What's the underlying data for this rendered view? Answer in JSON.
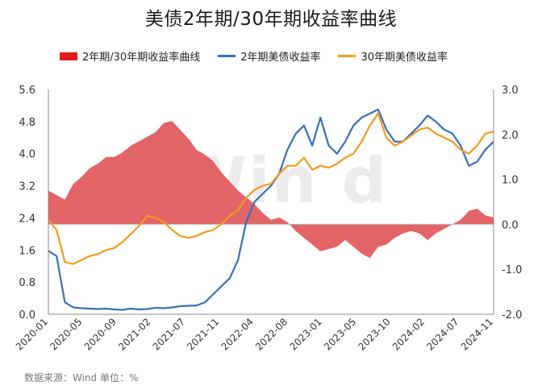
{
  "chart_data": {
    "type": "line",
    "title": "美债2年期/30年期收益率曲线",
    "source_note": "数据来源：Wind 单位：%",
    "watermark": "Wind",
    "y_left": {
      "min": 0.0,
      "max": 5.6,
      "ticks": [
        "5.6",
        "4.8",
        "4.0",
        "3.2",
        "2.4",
        "1.6",
        "0.8",
        "0.0"
      ]
    },
    "y_right": {
      "min": -2.0,
      "max": 3.0,
      "ticks": [
        "3.0",
        "2.0",
        "1.0",
        "0.0",
        "-1.0",
        "-2.0"
      ]
    },
    "x_ticks": [
      "2020-01",
      "2020-05",
      "2020-09",
      "2021-02",
      "2021-07",
      "2021-11",
      "2022-04",
      "2022-08",
      "2023-01",
      "2023-05",
      "2023-10",
      "2024-02",
      "2024-07",
      "2024-11"
    ],
    "series": [
      {
        "name": "2年期/30年期收益率曲线",
        "axis": "right",
        "kind": "area",
        "color": "#e15759",
        "points": [
          [
            0,
            0.75
          ],
          [
            1,
            0.65
          ],
          [
            2,
            0.55
          ],
          [
            3,
            0.9
          ],
          [
            4,
            1.05
          ],
          [
            5,
            1.25
          ],
          [
            6,
            1.35
          ],
          [
            7,
            1.5
          ],
          [
            8,
            1.5
          ],
          [
            9,
            1.6
          ],
          [
            10,
            1.75
          ],
          [
            11,
            1.85
          ],
          [
            12,
            1.95
          ],
          [
            13,
            2.05
          ],
          [
            14,
            2.25
          ],
          [
            15,
            2.3
          ],
          [
            16,
            2.1
          ],
          [
            17,
            1.9
          ],
          [
            18,
            1.65
          ],
          [
            19,
            1.55
          ],
          [
            20,
            1.4
          ],
          [
            21,
            1.15
          ],
          [
            22,
            0.95
          ],
          [
            23,
            0.75
          ],
          [
            24,
            0.6
          ],
          [
            25,
            0.45
          ],
          [
            26,
            0.25
          ],
          [
            27,
            0.1
          ],
          [
            28,
            0.15
          ],
          [
            29,
            0.05
          ],
          [
            30,
            -0.15
          ],
          [
            31,
            -0.3
          ],
          [
            32,
            -0.45
          ],
          [
            33,
            -0.6
          ],
          [
            34,
            -0.55
          ],
          [
            35,
            -0.5
          ],
          [
            36,
            -0.35
          ],
          [
            37,
            -0.5
          ],
          [
            38,
            -0.65
          ],
          [
            39,
            -0.75
          ],
          [
            40,
            -0.5
          ],
          [
            41,
            -0.45
          ],
          [
            42,
            -0.3
          ],
          [
            43,
            -0.2
          ],
          [
            44,
            -0.15
          ],
          [
            45,
            -0.2
          ],
          [
            46,
            -0.35
          ],
          [
            47,
            -0.2
          ],
          [
            48,
            -0.1
          ],
          [
            49,
            0.0
          ],
          [
            50,
            0.1
          ],
          [
            51,
            0.3
          ],
          [
            52,
            0.35
          ],
          [
            53,
            0.2
          ],
          [
            54,
            0.15
          ]
        ]
      },
      {
        "name": "2年期美债收益率",
        "axis": "left",
        "kind": "line",
        "color": "#3b6fb6",
        "points": [
          [
            0,
            1.58
          ],
          [
            1,
            1.45
          ],
          [
            2,
            0.3
          ],
          [
            3,
            0.17
          ],
          [
            4,
            0.15
          ],
          [
            5,
            0.14
          ],
          [
            6,
            0.13
          ],
          [
            7,
            0.14
          ],
          [
            8,
            0.12
          ],
          [
            9,
            0.11
          ],
          [
            10,
            0.14
          ],
          [
            11,
            0.12
          ],
          [
            12,
            0.13
          ],
          [
            13,
            0.16
          ],
          [
            14,
            0.15
          ],
          [
            15,
            0.17
          ],
          [
            16,
            0.2
          ],
          [
            17,
            0.21
          ],
          [
            18,
            0.22
          ],
          [
            19,
            0.3
          ],
          [
            20,
            0.5
          ],
          [
            21,
            0.7
          ],
          [
            22,
            0.9
          ],
          [
            23,
            1.35
          ],
          [
            24,
            2.3
          ],
          [
            25,
            2.8
          ],
          [
            26,
            3.0
          ],
          [
            27,
            3.2
          ],
          [
            28,
            3.5
          ],
          [
            29,
            4.1
          ],
          [
            30,
            4.5
          ],
          [
            31,
            4.7
          ],
          [
            32,
            4.2
          ],
          [
            33,
            4.9
          ],
          [
            34,
            4.2
          ],
          [
            35,
            4.0
          ],
          [
            36,
            4.3
          ],
          [
            37,
            4.7
          ],
          [
            38,
            4.9
          ],
          [
            39,
            5.0
          ],
          [
            40,
            5.1
          ],
          [
            41,
            4.6
          ],
          [
            42,
            4.3
          ],
          [
            43,
            4.3
          ],
          [
            44,
            4.5
          ],
          [
            45,
            4.7
          ],
          [
            46,
            4.95
          ],
          [
            47,
            4.8
          ],
          [
            48,
            4.6
          ],
          [
            49,
            4.5
          ],
          [
            50,
            4.2
          ],
          [
            51,
            3.7
          ],
          [
            52,
            3.8
          ],
          [
            53,
            4.1
          ],
          [
            54,
            4.3
          ]
        ]
      },
      {
        "name": "30年期美债收益率",
        "axis": "left",
        "kind": "line",
        "color": "#f39a1d",
        "points": [
          [
            0,
            2.35
          ],
          [
            1,
            2.1
          ],
          [
            2,
            1.3
          ],
          [
            3,
            1.25
          ],
          [
            4,
            1.35
          ],
          [
            5,
            1.45
          ],
          [
            6,
            1.5
          ],
          [
            7,
            1.6
          ],
          [
            8,
            1.65
          ],
          [
            9,
            1.8
          ],
          [
            10,
            2.0
          ],
          [
            11,
            2.2
          ],
          [
            12,
            2.45
          ],
          [
            13,
            2.4
          ],
          [
            14,
            2.3
          ],
          [
            15,
            2.1
          ],
          [
            16,
            1.95
          ],
          [
            17,
            1.9
          ],
          [
            18,
            1.95
          ],
          [
            19,
            2.05
          ],
          [
            20,
            2.1
          ],
          [
            21,
            2.25
          ],
          [
            22,
            2.45
          ],
          [
            23,
            2.6
          ],
          [
            24,
            2.9
          ],
          [
            25,
            3.1
          ],
          [
            26,
            3.2
          ],
          [
            27,
            3.25
          ],
          [
            28,
            3.5
          ],
          [
            29,
            3.7
          ],
          [
            30,
            3.7
          ],
          [
            31,
            3.9
          ],
          [
            32,
            3.6
          ],
          [
            33,
            3.7
          ],
          [
            34,
            3.65
          ],
          [
            35,
            3.75
          ],
          [
            36,
            3.9
          ],
          [
            37,
            4.0
          ],
          [
            38,
            4.3
          ],
          [
            39,
            4.7
          ],
          [
            40,
            5.0
          ],
          [
            41,
            4.4
          ],
          [
            42,
            4.2
          ],
          [
            43,
            4.3
          ],
          [
            44,
            4.45
          ],
          [
            45,
            4.6
          ],
          [
            46,
            4.65
          ],
          [
            47,
            4.5
          ],
          [
            48,
            4.4
          ],
          [
            49,
            4.3
          ],
          [
            50,
            4.1
          ],
          [
            51,
            4.0
          ],
          [
            52,
            4.2
          ],
          [
            53,
            4.5
          ],
          [
            54,
            4.55
          ]
        ]
      }
    ]
  },
  "legend": {
    "area_label": "2年期/30年期收益率曲线",
    "line1_label": "2年期美债收益率",
    "line2_label": "30年期美债收益率"
  }
}
